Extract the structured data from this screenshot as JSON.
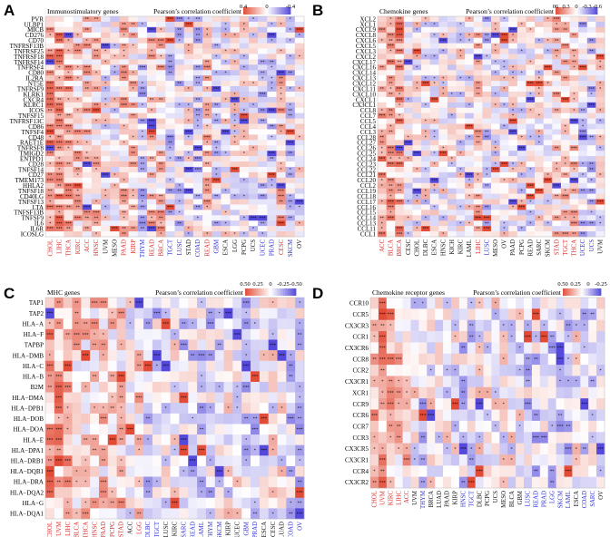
{
  "colors": {
    "positive": "#e0412b",
    "negative": "#4b3fd8",
    "neutral": "#ffffff",
    "red_label": "#d62a2a",
    "blue_label": "#2a2ad6",
    "black_label": "#111111"
  },
  "chart_data": [
    {
      "type": "heatmap",
      "panel_label": "A",
      "title": "Immunostimulatory genes",
      "legend_title": "Pearson’s correlation coefficient",
      "legend_ticks": [
        "0.4",
        "0",
        "-0.4"
      ],
      "rows": [
        "PVR",
        "ULBP1",
        "MICB",
        "CD276",
        "CD70",
        "TNFRSF13B",
        "TNFRSF25",
        "TNFRSF18",
        "TNFRSF14",
        "TNFRSF4",
        "CD80",
        "IL2RA",
        "NT5E",
        "TNFRSF9",
        "KLRK1",
        "CXCR4",
        "KLRC1",
        "ICOS",
        "TNFSF15",
        "TNFRSF13C",
        "CD86",
        "TNFSF4",
        "CD48",
        "RAET1E",
        "TNFRSF8",
        "TMIGD2",
        "ENTPD1",
        "CD28",
        "TNFSF14",
        "CD27",
        "TMEM173",
        "HHLA2",
        "TNFSF18",
        "CD40LG",
        "TNFSF13",
        "LTA",
        "TNFSF13B",
        "TNFSF9",
        "IL6",
        "IL6R",
        "ICOSLG"
      ],
      "columns": [
        "CHOL",
        "LIHC",
        "THCA",
        "KIRC",
        "ACC",
        "HNSC",
        "UVM",
        "MESO",
        "PAAD",
        "KIRP",
        "THYM",
        "READ",
        "BRCA",
        "TGCT",
        "LUSC",
        "STAD",
        "COAD",
        "READ",
        "GBM",
        "ESCA",
        "LGG",
        "PCPG",
        "UCS",
        "UCEC",
        "PRAD",
        "CESC",
        "SKCM",
        "OV"
      ],
      "column_colors": [
        "red",
        "red",
        "red",
        "red",
        "red",
        "red",
        "black",
        "black",
        "red",
        "red",
        "blue",
        "red",
        "red",
        "blue",
        "blue",
        "black",
        "blue",
        "red",
        "blue",
        "black",
        "black",
        "black",
        "black",
        "blue",
        "blue",
        "red",
        "blue",
        "black"
      ]
    },
    {
      "type": "heatmap",
      "panel_label": "B",
      "title": "Chemokine genes",
      "legend_title": "Pearson’s correlation coefficient",
      "legend_ticks": [
        "06",
        "0.3",
        "0",
        "-0.3",
        "-0.6"
      ],
      "rows": [
        "XCL2",
        "XCL1",
        "CXCL9",
        "CXCL8",
        "CXCL6",
        "CXCL5",
        "CXCL3",
        "CXCL2",
        "CXCL17",
        "CXCL16",
        "CXCL14",
        "CXCL13",
        "CXCL12",
        "CXCL11",
        "CXCL10",
        "CXCL1",
        "CX3CL1",
        "CCL8",
        "CCL7",
        "CCL5",
        "CCL4",
        "CCL3",
        "CCL28",
        "CCL27",
        "CCL26",
        "CCL25",
        "CCL24",
        "CCL23",
        "CCL22",
        "CCL21",
        "CCL20",
        "CCL2",
        "CCL19",
        "CCL18",
        "CCL17",
        "CCL16",
        "CCL15",
        "CCL14",
        "CCL13",
        "CCL11",
        "CCL1"
      ],
      "columns": [
        "ACC",
        "BLCA",
        "BRCA",
        "CESC",
        "CHOL",
        "DLBC",
        "ESCA",
        "HNSC",
        "KICH",
        "KIRC",
        "LAML",
        "LIHC",
        "LUSC",
        "MESO",
        "OV",
        "PAAD",
        "PCPG",
        "READ",
        "SARC",
        "SKCM",
        "STAD",
        "TGCT",
        "THCA",
        "UCEC",
        "UCS",
        "UVM"
      ],
      "column_colors": [
        "red",
        "red",
        "red",
        "black",
        "black",
        "black",
        "black",
        "black",
        "black",
        "black",
        "black",
        "red",
        "blue",
        "black",
        "black",
        "black",
        "black",
        "black",
        "black",
        "black",
        "red",
        "red",
        "red",
        "blue",
        "blue",
        "black"
      ]
    },
    {
      "type": "heatmap",
      "panel_label": "C",
      "title": "MHC genes",
      "legend_title": "Pearson’s correlation coefficient",
      "legend_ticks": [
        "0.50",
        "0.25",
        "0",
        "-0.25",
        "-0.50"
      ],
      "rows": [
        "TAP1",
        "TAP2",
        "HLA−A",
        "HLA−F",
        "TAPBP",
        "HLA−DMB",
        "HLA−C",
        "HLA−B",
        "B2M",
        "HLA−DMA",
        "HLA−DPB1",
        "HLA−DOB",
        "HLA−DOA",
        "HLA−E",
        "HLA−DPA1",
        "HLA−DRB1",
        "HLA−DQB1",
        "HLA−DRA",
        "HLA−DQA2",
        "HLA−G",
        "HLA−DQA1"
      ],
      "columns": [
        "CHOL",
        "UVM",
        "LIHC",
        "BLCA",
        "THCA",
        "HNSC",
        "PAAD",
        "PCPG",
        "STAD",
        "ACC",
        "LGG",
        "DLBC",
        "TGCT",
        "LUSC",
        "KIRC",
        "SARC",
        "READ",
        "LAML",
        "THYM",
        "SKCM",
        "KIRP",
        "UCEC",
        "GBM",
        "PRAD",
        "ESCA",
        "CESC",
        "LUAD",
        "COAD",
        "OV"
      ],
      "column_colors": [
        "red",
        "red",
        "red",
        "red",
        "red",
        "red",
        "red",
        "red",
        "red",
        "black",
        "red",
        "blue",
        "blue",
        "black",
        "black",
        "blue",
        "blue",
        "blue",
        "blue",
        "blue",
        "black",
        "black",
        "blue",
        "blue",
        "black",
        "black",
        "black",
        "blue",
        "blue"
      ]
    },
    {
      "type": "heatmap",
      "panel_label": "D",
      "title": "Chemokine receptor genes",
      "legend_title": "Pearson’s correlation coefficient",
      "legend_ticks": [
        "0.50",
        "0.25",
        "0",
        "-0.25"
      ],
      "rows": [
        "CCR10",
        "CCR5",
        "CX3CR3",
        "CCR1",
        "CX3CR6",
        "CCR8",
        "CCR2",
        "CX3CR1",
        "XCR1",
        "CCR9",
        "CCR6",
        "CCR7",
        "CCR3",
        "CX3CR5",
        "CX3CR1",
        "CCR4",
        "CX3CR2"
      ],
      "columns": [
        "CHOL",
        "UVM",
        "KIRC",
        "LIHC",
        "ACC",
        "UVM",
        "THYM",
        "BRCA",
        "LUAD",
        "PAAD",
        "KIRP",
        "HNSC",
        "TGCT",
        "DLBC",
        "PCPG",
        "UCS",
        "MESO",
        "BLCA",
        "GBM",
        "LUSC",
        "READ",
        "PRAD",
        "LGG",
        "SKCM",
        "LAML",
        "ESCA",
        "COAD",
        "SARC",
        "OV"
      ],
      "column_colors": [
        "red",
        "red",
        "red",
        "red",
        "red",
        "black",
        "blue",
        "black",
        "black",
        "black",
        "black",
        "blue",
        "blue",
        "black",
        "black",
        "black",
        "black",
        "black",
        "black",
        "blue",
        "blue",
        "blue",
        "blue",
        "blue",
        "blue",
        "black",
        "blue",
        "blue",
        "black"
      ]
    }
  ]
}
